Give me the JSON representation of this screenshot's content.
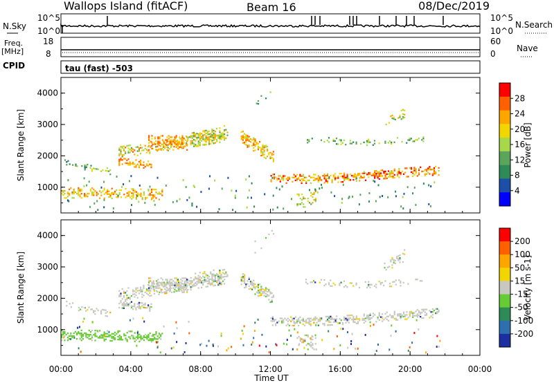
{
  "header": {
    "station": "Wallops Island (fitACF)",
    "beam": "Beam 16",
    "date": "08/Dec/2019"
  },
  "strip_labels": {
    "nsky": "N.Sky",
    "nsearch": "N.Search",
    "nsky_top": "10^5",
    "nsky_bottom": "10^0",
    "nsearch_top": "10^5",
    "nsearch_bottom": "10^0",
    "freq_line1": "Freq.",
    "freq_line2": "[MHz]",
    "freq_top": "18",
    "freq_bottom": "8",
    "nave": "Nave",
    "nave_top": "60",
    "nave_bottom": "0",
    "cpid": "CPID",
    "cpid_value": "tau (fast) -503"
  },
  "colors": {
    "power_scale": [
      "#0000ff",
      "#1c4fa8",
      "#2e8b57",
      "#5aa55a",
      "#a6d84a",
      "#f2d600",
      "#ffa500",
      "#ff6000",
      "#ff0000"
    ],
    "velocity_scale": [
      "#1c2fa0",
      "#2e6fb0",
      "#2e8b57",
      "#66cc33",
      "#c8c8c0",
      "#f2d600",
      "#ffa500",
      "#ff6000",
      "#ff0000"
    ]
  },
  "chart_data": [
    {
      "type": "heatmap",
      "title": "Power",
      "xlabel": "",
      "ylabel": "Slant Range [km]",
      "xlim": [
        "00:00",
        "24:00"
      ],
      "ylim": [
        180,
        4500
      ],
      "yticks": [
        "1000",
        "2000",
        "3000",
        "4000"
      ],
      "colorbar": {
        "label": "Power [dB]",
        "ticks": [
          "4",
          "8",
          "12",
          "16",
          "20",
          "24",
          "28"
        ],
        "range": [
          0,
          30
        ]
      },
      "echo_bands": [
        {
          "start_h": 0.0,
          "end_h": 5.8,
          "range_km": 800,
          "level": "power medium"
        },
        {
          "start_h": 3.3,
          "end_h": 9.4,
          "range_km": 2300,
          "level": "power high"
        },
        {
          "start_h": 10.3,
          "end_h": 21.6,
          "range_km": 1350,
          "level": "power high"
        },
        {
          "start_h": 14.0,
          "end_h": 21.0,
          "range_km": 2400,
          "level": "power low"
        }
      ]
    },
    {
      "type": "heatmap",
      "title": "Velocity",
      "xlabel": "Time UT",
      "ylabel": "Slant Range [km]",
      "xlim": [
        "00:00",
        "24:00"
      ],
      "ylim": [
        180,
        4500
      ],
      "xticks": [
        "00:00",
        "04:00",
        "08:00",
        "12:00",
        "16:00",
        "20:00",
        "00:00"
      ],
      "yticks": [
        "1000",
        "2000",
        "3000",
        "4000"
      ],
      "colorbar": {
        "label": "Velocity [m s-1]",
        "ticks": [
          "200",
          "100",
          "50",
          "15",
          "-15",
          "-50",
          "-100",
          "-200"
        ],
        "range": [
          -250,
          250
        ]
      }
    }
  ]
}
